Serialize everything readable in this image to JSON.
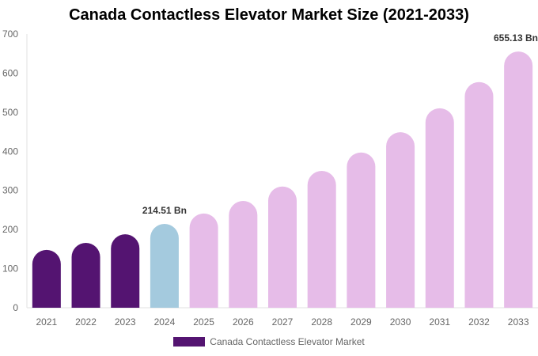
{
  "chart_data": {
    "type": "bar",
    "title": "Canada Contactless Elevator Market Size (2021-2033)",
    "categories": [
      "2021",
      "2022",
      "2023",
      "2024",
      "2025",
      "2026",
      "2027",
      "2028",
      "2029",
      "2030",
      "2031",
      "2032",
      "2033"
    ],
    "series": [
      {
        "name": "Canada Contactless Elevator Market",
        "values": [
          148,
          166,
          188,
          214.51,
          241,
          273,
          310,
          350,
          397,
          449,
          510,
          577,
          655.13
        ]
      }
    ],
    "data_labels": [
      {
        "index": 3,
        "text": "214.51 Bn"
      },
      {
        "index": 12,
        "text": "655.13 Bn"
      }
    ],
    "ylim": [
      0,
      700
    ],
    "yticks": [
      0,
      100,
      200,
      300,
      400,
      500,
      600,
      700
    ],
    "grid": false,
    "legend": "bottom",
    "colors": {
      "historical": "#541471",
      "current": "#a4cade",
      "forecast": "#e6bce8"
    },
    "xlabel": "",
    "ylabel": ""
  }
}
